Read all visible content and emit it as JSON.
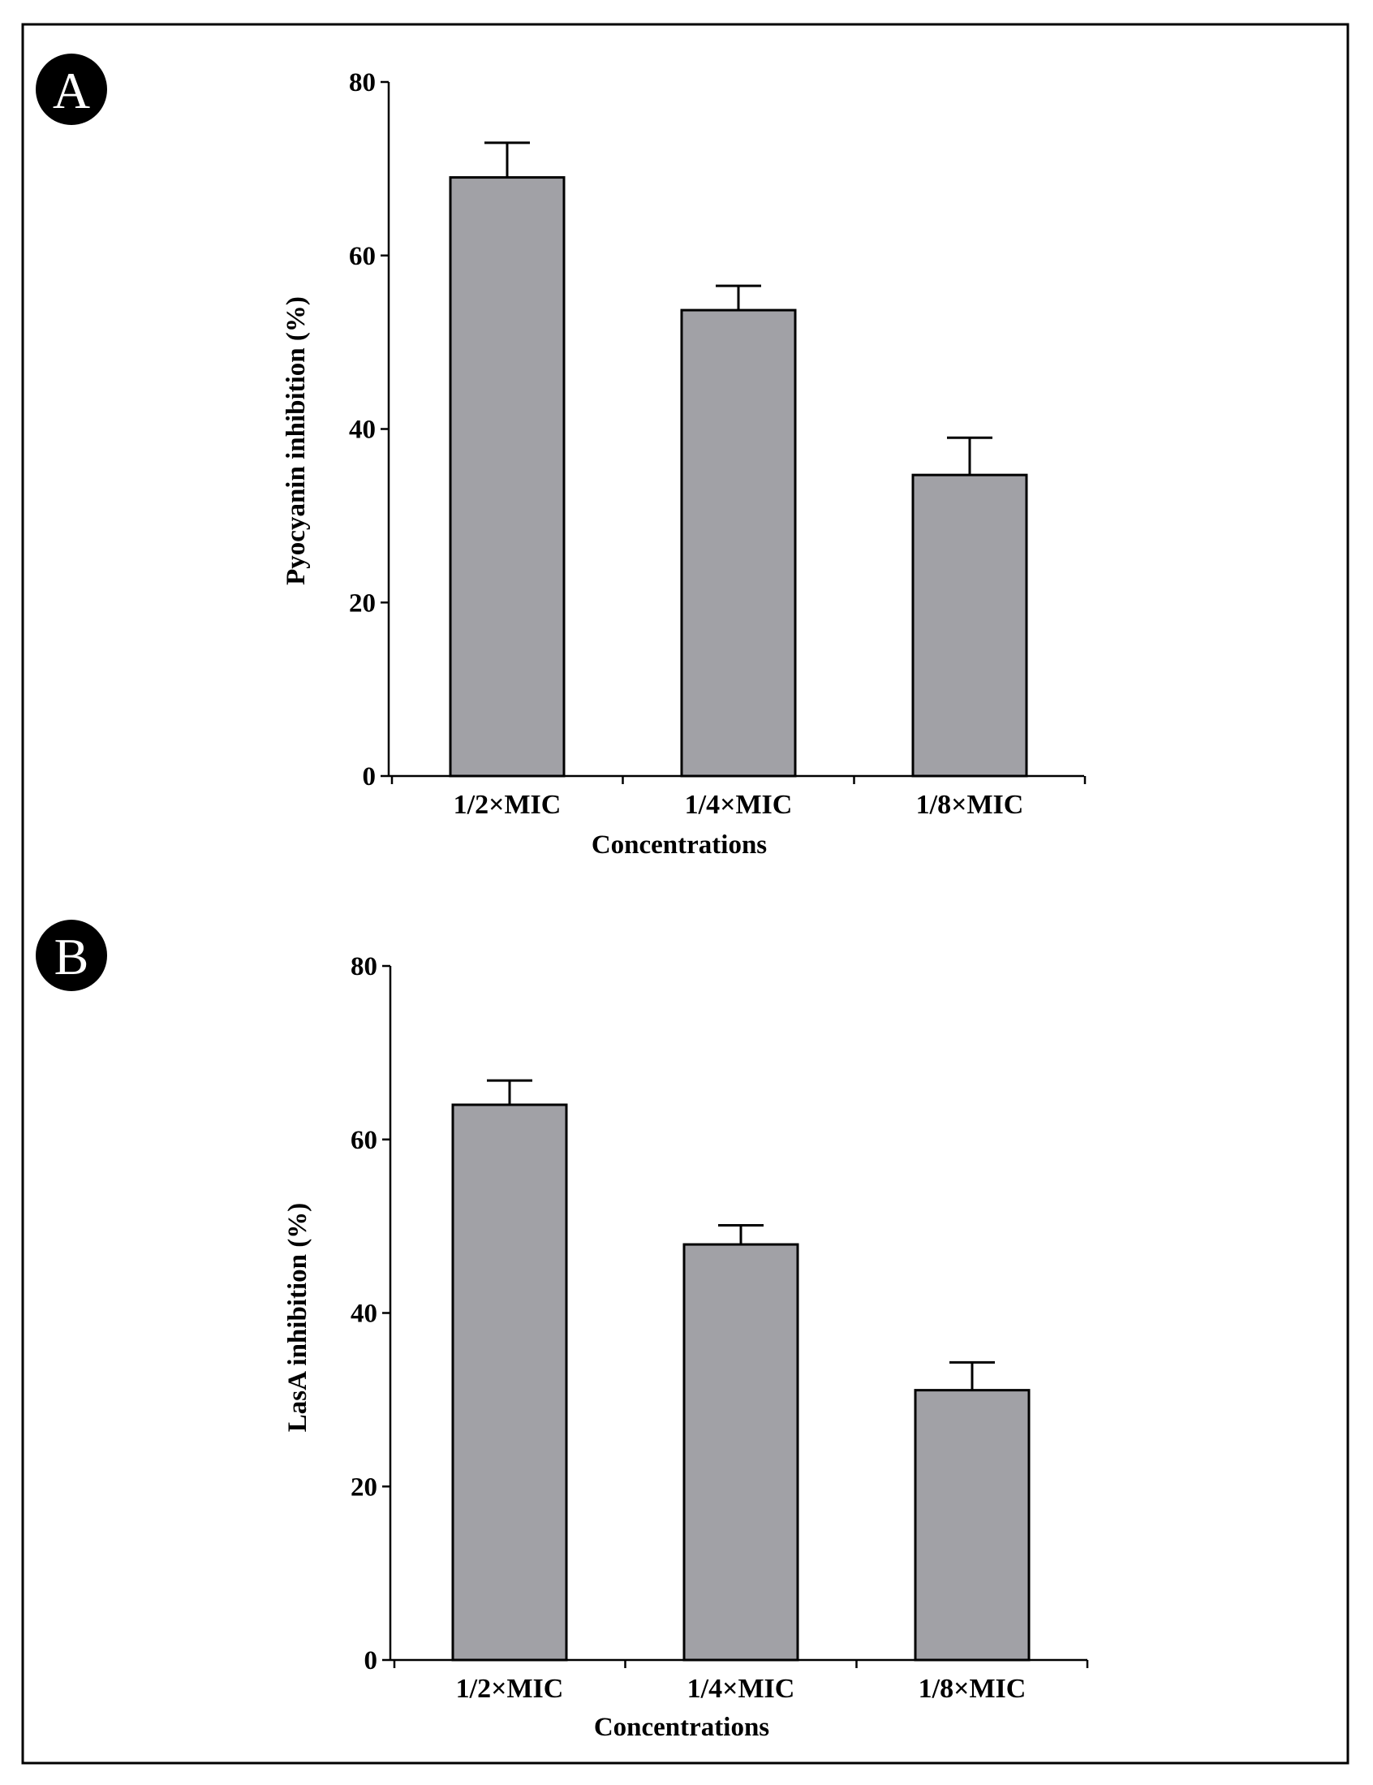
{
  "figure": {
    "frame_color": "#000000",
    "bar_color": "#a1a1a6"
  },
  "chart_data": [
    {
      "panel": "A",
      "type": "bar",
      "categories": [
        "1/2×MIC",
        "1/4×MIC",
        "1/8×MIC"
      ],
      "values": [
        69,
        53.7,
        34.7
      ],
      "errors": [
        4,
        2.8,
        4.3
      ],
      "xlabel": "Concentrations",
      "ylabel": "Pyocyanin inhibition (%)",
      "ylim": [
        0,
        80
      ],
      "yticks": [
        0,
        20,
        40,
        60,
        80
      ],
      "grid": false
    },
    {
      "panel": "B",
      "type": "bar",
      "categories": [
        "1/2×MIC",
        "1/4×MIC",
        "1/8×MIC"
      ],
      "values": [
        64,
        47.9,
        31.1
      ],
      "errors": [
        2.8,
        2.2,
        3.2
      ],
      "xlabel": "Concentrations",
      "ylabel": "LasA inhibition (%)",
      "ylim": [
        0,
        80
      ],
      "yticks": [
        0,
        20,
        40,
        60,
        80
      ],
      "grid": false
    }
  ]
}
